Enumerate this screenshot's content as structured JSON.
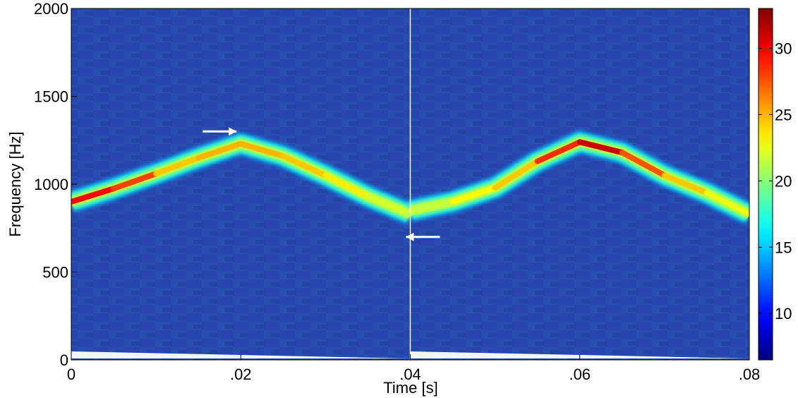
{
  "chart_data": {
    "type": "heatmap",
    "title": "",
    "xlabel": "Time [s]",
    "ylabel": "Frequency [Hz]",
    "xlim": [
      0,
      0.08
    ],
    "ylim": [
      0,
      2000
    ],
    "x_ticks": [
      0,
      0.02,
      0.04,
      0.06,
      0.08
    ],
    "x_tick_labels": [
      "0",
      ".02",
      ".04",
      ".06",
      ".08"
    ],
    "y_ticks": [
      0,
      500,
      1000,
      1500,
      2000
    ],
    "y_tick_labels": [
      "0",
      "500",
      "1000",
      "1500",
      "2000"
    ],
    "colorbar": {
      "colormap": "jet",
      "range": [
        6.5,
        33
      ],
      "ticks": [
        10,
        15,
        20,
        25,
        30
      ],
      "tick_labels": [
        "10",
        "15",
        "20",
        "25",
        "30"
      ]
    },
    "background_level": 9,
    "ridge_segments": [
      {
        "name": "segment-1",
        "points": [
          [
            0.0,
            900
          ],
          [
            0.005,
            975
          ],
          [
            0.01,
            1060
          ],
          [
            0.015,
            1150
          ],
          [
            0.02,
            1230
          ],
          [
            0.025,
            1160
          ],
          [
            0.03,
            1050
          ],
          [
            0.035,
            930
          ],
          [
            0.04,
            830
          ]
        ],
        "peak_levels": [
          28,
          31,
          25,
          24,
          26,
          24,
          25,
          22,
          22
        ]
      },
      {
        "name": "segment-2",
        "points": [
          [
            0.04,
            850
          ],
          [
            0.045,
            900
          ],
          [
            0.05,
            980
          ],
          [
            0.055,
            1130
          ],
          [
            0.06,
            1240
          ],
          [
            0.065,
            1180
          ],
          [
            0.07,
            1050
          ],
          [
            0.075,
            950
          ],
          [
            0.08,
            830
          ]
        ],
        "peak_levels": [
          21,
          22,
          24,
          25,
          32,
          30,
          25,
          24,
          21
        ]
      }
    ],
    "annotations": [
      {
        "name": "arrow-right",
        "direction": "right",
        "x_from": 0.0155,
        "x_to": 0.0195,
        "y": 1300
      },
      {
        "name": "arrow-left",
        "direction": "left",
        "x_from": 0.0435,
        "x_to": 0.0395,
        "y": 700
      }
    ]
  },
  "colors": {
    "arrow": "#ffffff",
    "separator": "#ffffff",
    "background_base": "#1f3fa8"
  }
}
